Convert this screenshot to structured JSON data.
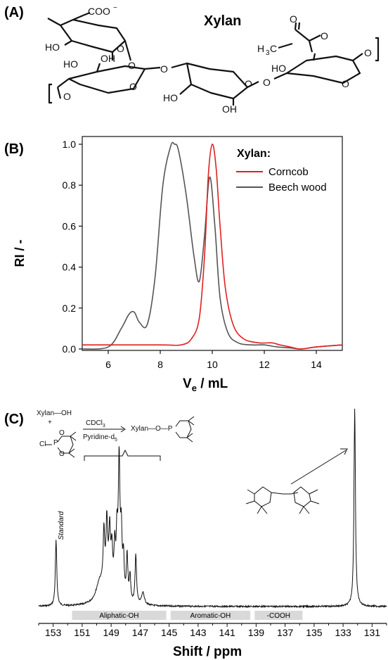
{
  "panels": {
    "a": {
      "label": "(A)",
      "title": "Xylan",
      "chem": {
        "coo": "COO",
        "coo_charge": "−",
        "ho": "HO",
        "oh": "OH",
        "o": "O",
        "h3c": "H",
        "h3c_sub": "3",
        "h3c_c": "C"
      }
    },
    "b": {
      "label": "(B)",
      "legend_title": "Xylan:"
    },
    "c": {
      "label": "(C)",
      "standard_label": "Standard",
      "reaction": {
        "reagent1": "Xylan—OH",
        "plus": "+",
        "cl": "Cl",
        "p": "P",
        "o": "O",
        "cond1": "CDCl",
        "cond1_sub": "3",
        "cond2": "Pyridine-d",
        "cond2_sub": "5",
        "product": "Xylan—O—P"
      },
      "regions": [
        "Aliphatic-OH",
        "Aromatic-OH",
        "-COOH"
      ]
    }
  },
  "chart_data": [
    {
      "type": "line",
      "xlabel": "V",
      "xlabel_sub": "e",
      "xlabel_unit": " / mL",
      "ylabel": "RI / -",
      "xlim": [
        5,
        15
      ],
      "ylim": [
        0,
        1.0
      ],
      "xticks": [
        6,
        8,
        10,
        12,
        14
      ],
      "yticks": [
        0.0,
        0.2,
        0.4,
        0.6,
        0.8,
        1.0
      ],
      "legend_placement": "top-right",
      "series": [
        {
          "name": "Corncob",
          "color": "#e02020",
          "x": [
            5.0,
            8.0,
            8.8,
            9.2,
            9.5,
            9.7,
            9.85,
            10.0,
            10.15,
            10.3,
            10.5,
            10.8,
            11.2,
            11.8,
            12.3,
            12.6,
            13.0,
            13.4,
            14.0,
            15.0
          ],
          "y": [
            0.02,
            0.02,
            0.02,
            0.05,
            0.15,
            0.45,
            0.85,
            1.0,
            0.88,
            0.6,
            0.3,
            0.12,
            0.05,
            0.03,
            0.03,
            0.02,
            0.01,
            0.0,
            0.01,
            0.02
          ]
        },
        {
          "name": "Beech wood",
          "color": "#555555",
          "x": [
            5.0,
            6.0,
            6.5,
            6.8,
            7.0,
            7.2,
            7.5,
            7.8,
            8.1,
            8.4,
            8.55,
            8.7,
            9.0,
            9.3,
            9.5,
            9.7,
            9.9,
            10.1,
            10.3,
            10.6,
            11.0,
            11.5,
            12.0,
            12.5,
            13.0,
            13.4,
            14.0,
            15.0
          ],
          "y": [
            0.0,
            0.01,
            0.1,
            0.17,
            0.18,
            0.13,
            0.12,
            0.35,
            0.8,
            0.99,
            1.0,
            0.97,
            0.75,
            0.45,
            0.33,
            0.55,
            0.84,
            0.6,
            0.25,
            0.08,
            0.03,
            0.02,
            0.02,
            0.01,
            0.005,
            0.0,
            0.01,
            0.02
          ]
        }
      ]
    },
    {
      "type": "line",
      "xlabel": "Shift / ppm",
      "xlim": [
        154.0,
        130.0
      ],
      "xticks": [
        153,
        151,
        149,
        147,
        145,
        143,
        141,
        139,
        137,
        135,
        133,
        131
      ],
      "peaks": [
        {
          "x": 152.8,
          "h": 0.33,
          "w": 0.06
        },
        {
          "x": 149.8,
          "h": 0.09,
          "w": 0.3
        },
        {
          "x": 149.2,
          "h": 0.14,
          "w": 0.35
        },
        {
          "x": 149.5,
          "h": 0.26,
          "w": 0.06
        },
        {
          "x": 149.3,
          "h": 0.28,
          "w": 0.06
        },
        {
          "x": 149.1,
          "h": 0.24,
          "w": 0.06
        },
        {
          "x": 148.95,
          "h": 0.18,
          "w": 0.06
        },
        {
          "x": 148.75,
          "h": 0.22,
          "w": 0.06
        },
        {
          "x": 148.6,
          "h": 0.27,
          "w": 0.06
        },
        {
          "x": 148.45,
          "h": 0.68,
          "w": 0.07
        },
        {
          "x": 148.3,
          "h": 0.3,
          "w": 0.06
        },
        {
          "x": 148.15,
          "h": 0.2,
          "w": 0.06
        },
        {
          "x": 147.9,
          "h": 0.23,
          "w": 0.06
        },
        {
          "x": 147.7,
          "h": 0.13,
          "w": 0.06
        },
        {
          "x": 147.3,
          "h": 0.25,
          "w": 0.06
        },
        {
          "x": 146.8,
          "h": 0.06,
          "w": 0.12
        },
        {
          "x": 132.2,
          "h": 1.0,
          "w": 0.06
        }
      ]
    }
  ]
}
